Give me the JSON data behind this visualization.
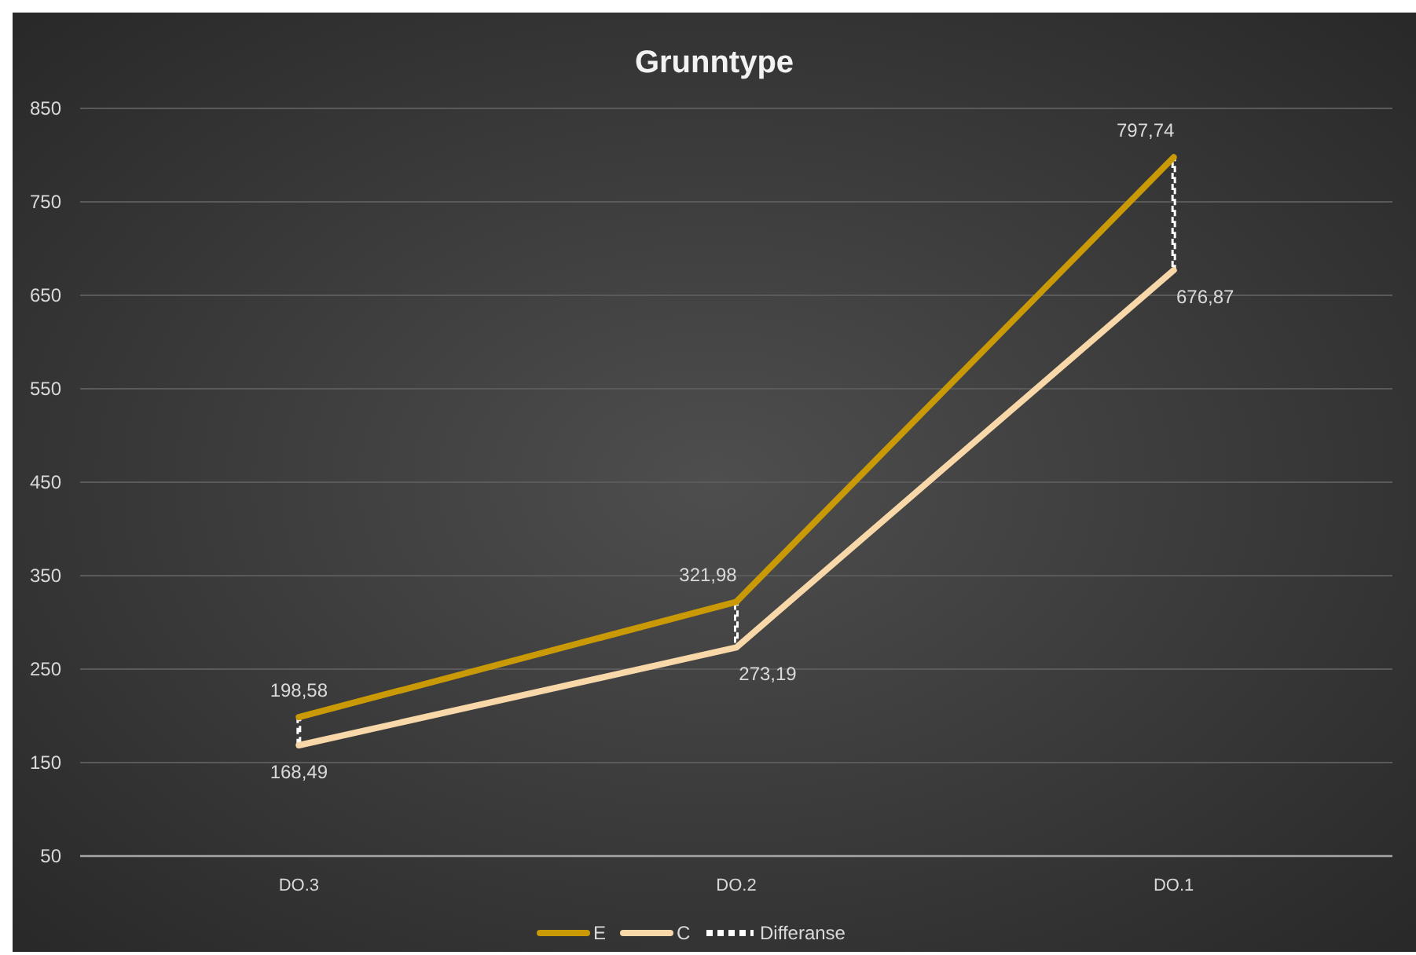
{
  "chart_data": {
    "type": "line",
    "title": "Grunntype",
    "categories": [
      "DO.3",
      "DO.2",
      "DO.1"
    ],
    "series": [
      {
        "name": "E",
        "color": "#c99a06",
        "values": [
          198.58,
          321.98,
          797.74
        ],
        "value_labels": [
          "198,58",
          "321,98",
          "797,74"
        ]
      },
      {
        "name": "C",
        "color": "#f8d8a8",
        "values": [
          168.49,
          273.19,
          676.87
        ],
        "value_labels": [
          "168,49",
          "273,19",
          "676,87"
        ]
      },
      {
        "name": "Differanse",
        "type": "bar",
        "color": "#ffffff",
        "line_style": "dashed",
        "base": [
          168.49,
          273.19,
          676.87
        ],
        "values": [
          30.1,
          48.8,
          120.9
        ]
      }
    ],
    "ylim": [
      50,
      850
    ],
    "yticks": [
      50,
      150,
      250,
      350,
      450,
      550,
      650,
      750,
      850
    ],
    "grid": "y",
    "legend": "bottom"
  }
}
